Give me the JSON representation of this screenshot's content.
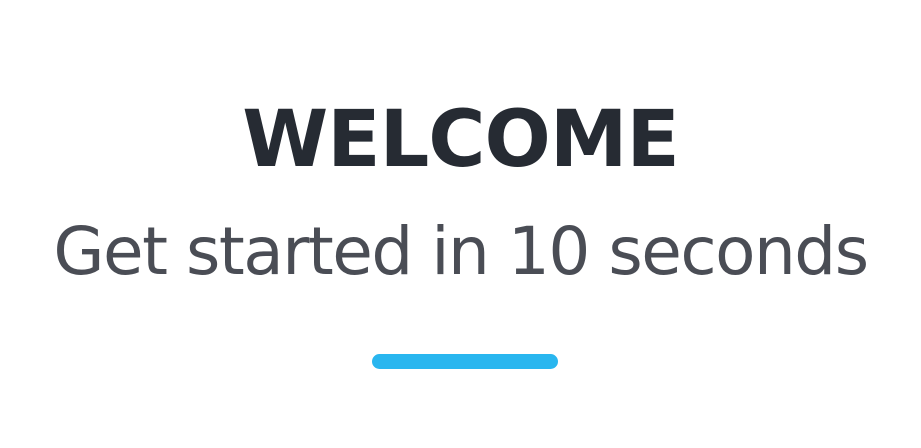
{
  "welcome": {
    "title": "WELCOME",
    "subtitle": "Get started in 10 seconds",
    "accent_color": "#29b6ef"
  }
}
